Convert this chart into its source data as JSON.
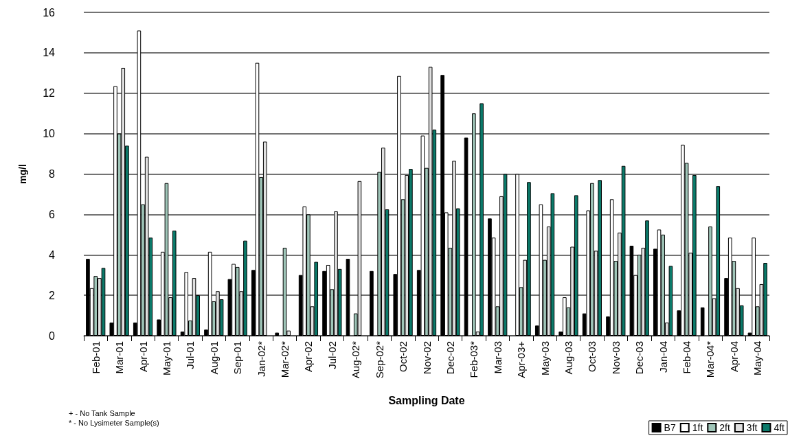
{
  "chart_data": {
    "type": "bar",
    "xlabel": "Sampling Date",
    "ylabel": "mg/l",
    "categories": [
      "Feb-01",
      "Mar-01",
      "Apr-01",
      "May-01",
      "Jul-01",
      "Aug-01",
      "Sep-01",
      "Jan-02*",
      "Mar-02*",
      "Apr-02",
      "Jul-02",
      "Aug-02*",
      "Sep-02*",
      "Oct-02",
      "Nov-02",
      "Dec-02",
      "Feb-03*",
      "Mar-03",
      "Apr-03+",
      "May-03",
      "Aug-03",
      "Oct-03",
      "Nov-03",
      "Dec-03",
      "Jan-04",
      "Feb-04",
      "Mar-04*",
      "Apr-04",
      "May-04"
    ],
    "series": [
      {
        "name": "B7",
        "color": "#000000",
        "values": [
          3.8,
          0.65,
          0.65,
          0.8,
          0.2,
          0.3,
          2.8,
          3.25,
          0.15,
          3.0,
          3.2,
          3.8,
          3.2,
          3.05,
          3.25,
          12.9,
          9.8,
          5.8,
          null,
          0.5,
          0.2,
          1.1,
          0.95,
          4.45,
          4.3,
          1.25,
          1.4,
          2.85,
          0.15
        ]
      },
      {
        "name": "1ft",
        "color": "#ffffff",
        "values": [
          2.35,
          12.35,
          15.1,
          4.15,
          3.15,
          4.15,
          3.55,
          13.5,
          null,
          6.4,
          3.5,
          null,
          null,
          12.85,
          9.9,
          6.1,
          null,
          4.85,
          8.0,
          6.5,
          1.9,
          6.2,
          6.75,
          3.0,
          5.25,
          9.45,
          null,
          4.85,
          4.85
        ]
      },
      {
        "name": "2ft",
        "color": "#9fc5b8",
        "values": [
          2.95,
          10.0,
          6.5,
          7.55,
          0.75,
          1.7,
          3.4,
          7.85,
          4.35,
          6.0,
          2.3,
          1.1,
          8.1,
          6.75,
          8.3,
          4.35,
          11.0,
          1.45,
          2.4,
          3.75,
          1.4,
          7.55,
          3.7,
          4.0,
          5.0,
          8.55,
          5.4,
          3.7,
          1.45
        ]
      },
      {
        "name": "3ft",
        "color": "#e0e0e0",
        "values": [
          2.85,
          13.25,
          8.85,
          1.9,
          2.85,
          2.2,
          2.2,
          9.6,
          0.25,
          1.45,
          6.15,
          7.65,
          9.3,
          7.95,
          13.3,
          8.65,
          0.2,
          6.9,
          3.75,
          5.4,
          4.4,
          4.2,
          5.1,
          4.35,
          0.65,
          4.1,
          1.85,
          2.35,
          2.55
        ]
      },
      {
        "name": "4ft",
        "color": "#0b7a6a",
        "values": [
          3.35,
          9.4,
          4.85,
          5.2,
          2.0,
          1.8,
          4.7,
          null,
          null,
          3.65,
          3.3,
          null,
          6.25,
          8.25,
          10.2,
          6.3,
          11.5,
          8.0,
          7.6,
          7.05,
          6.95,
          7.7,
          8.4,
          5.7,
          3.45,
          7.95,
          7.4,
          1.5,
          3.6
        ]
      }
    ],
    "ylim": [
      0,
      16
    ],
    "yticks": [
      0,
      2,
      4,
      6,
      8,
      10,
      12,
      14,
      16
    ],
    "grid": "y",
    "legend": "bottom right",
    "annotations": [
      "+ - No Tank Sample",
      "* - No Lysimeter Sample(s)"
    ]
  }
}
